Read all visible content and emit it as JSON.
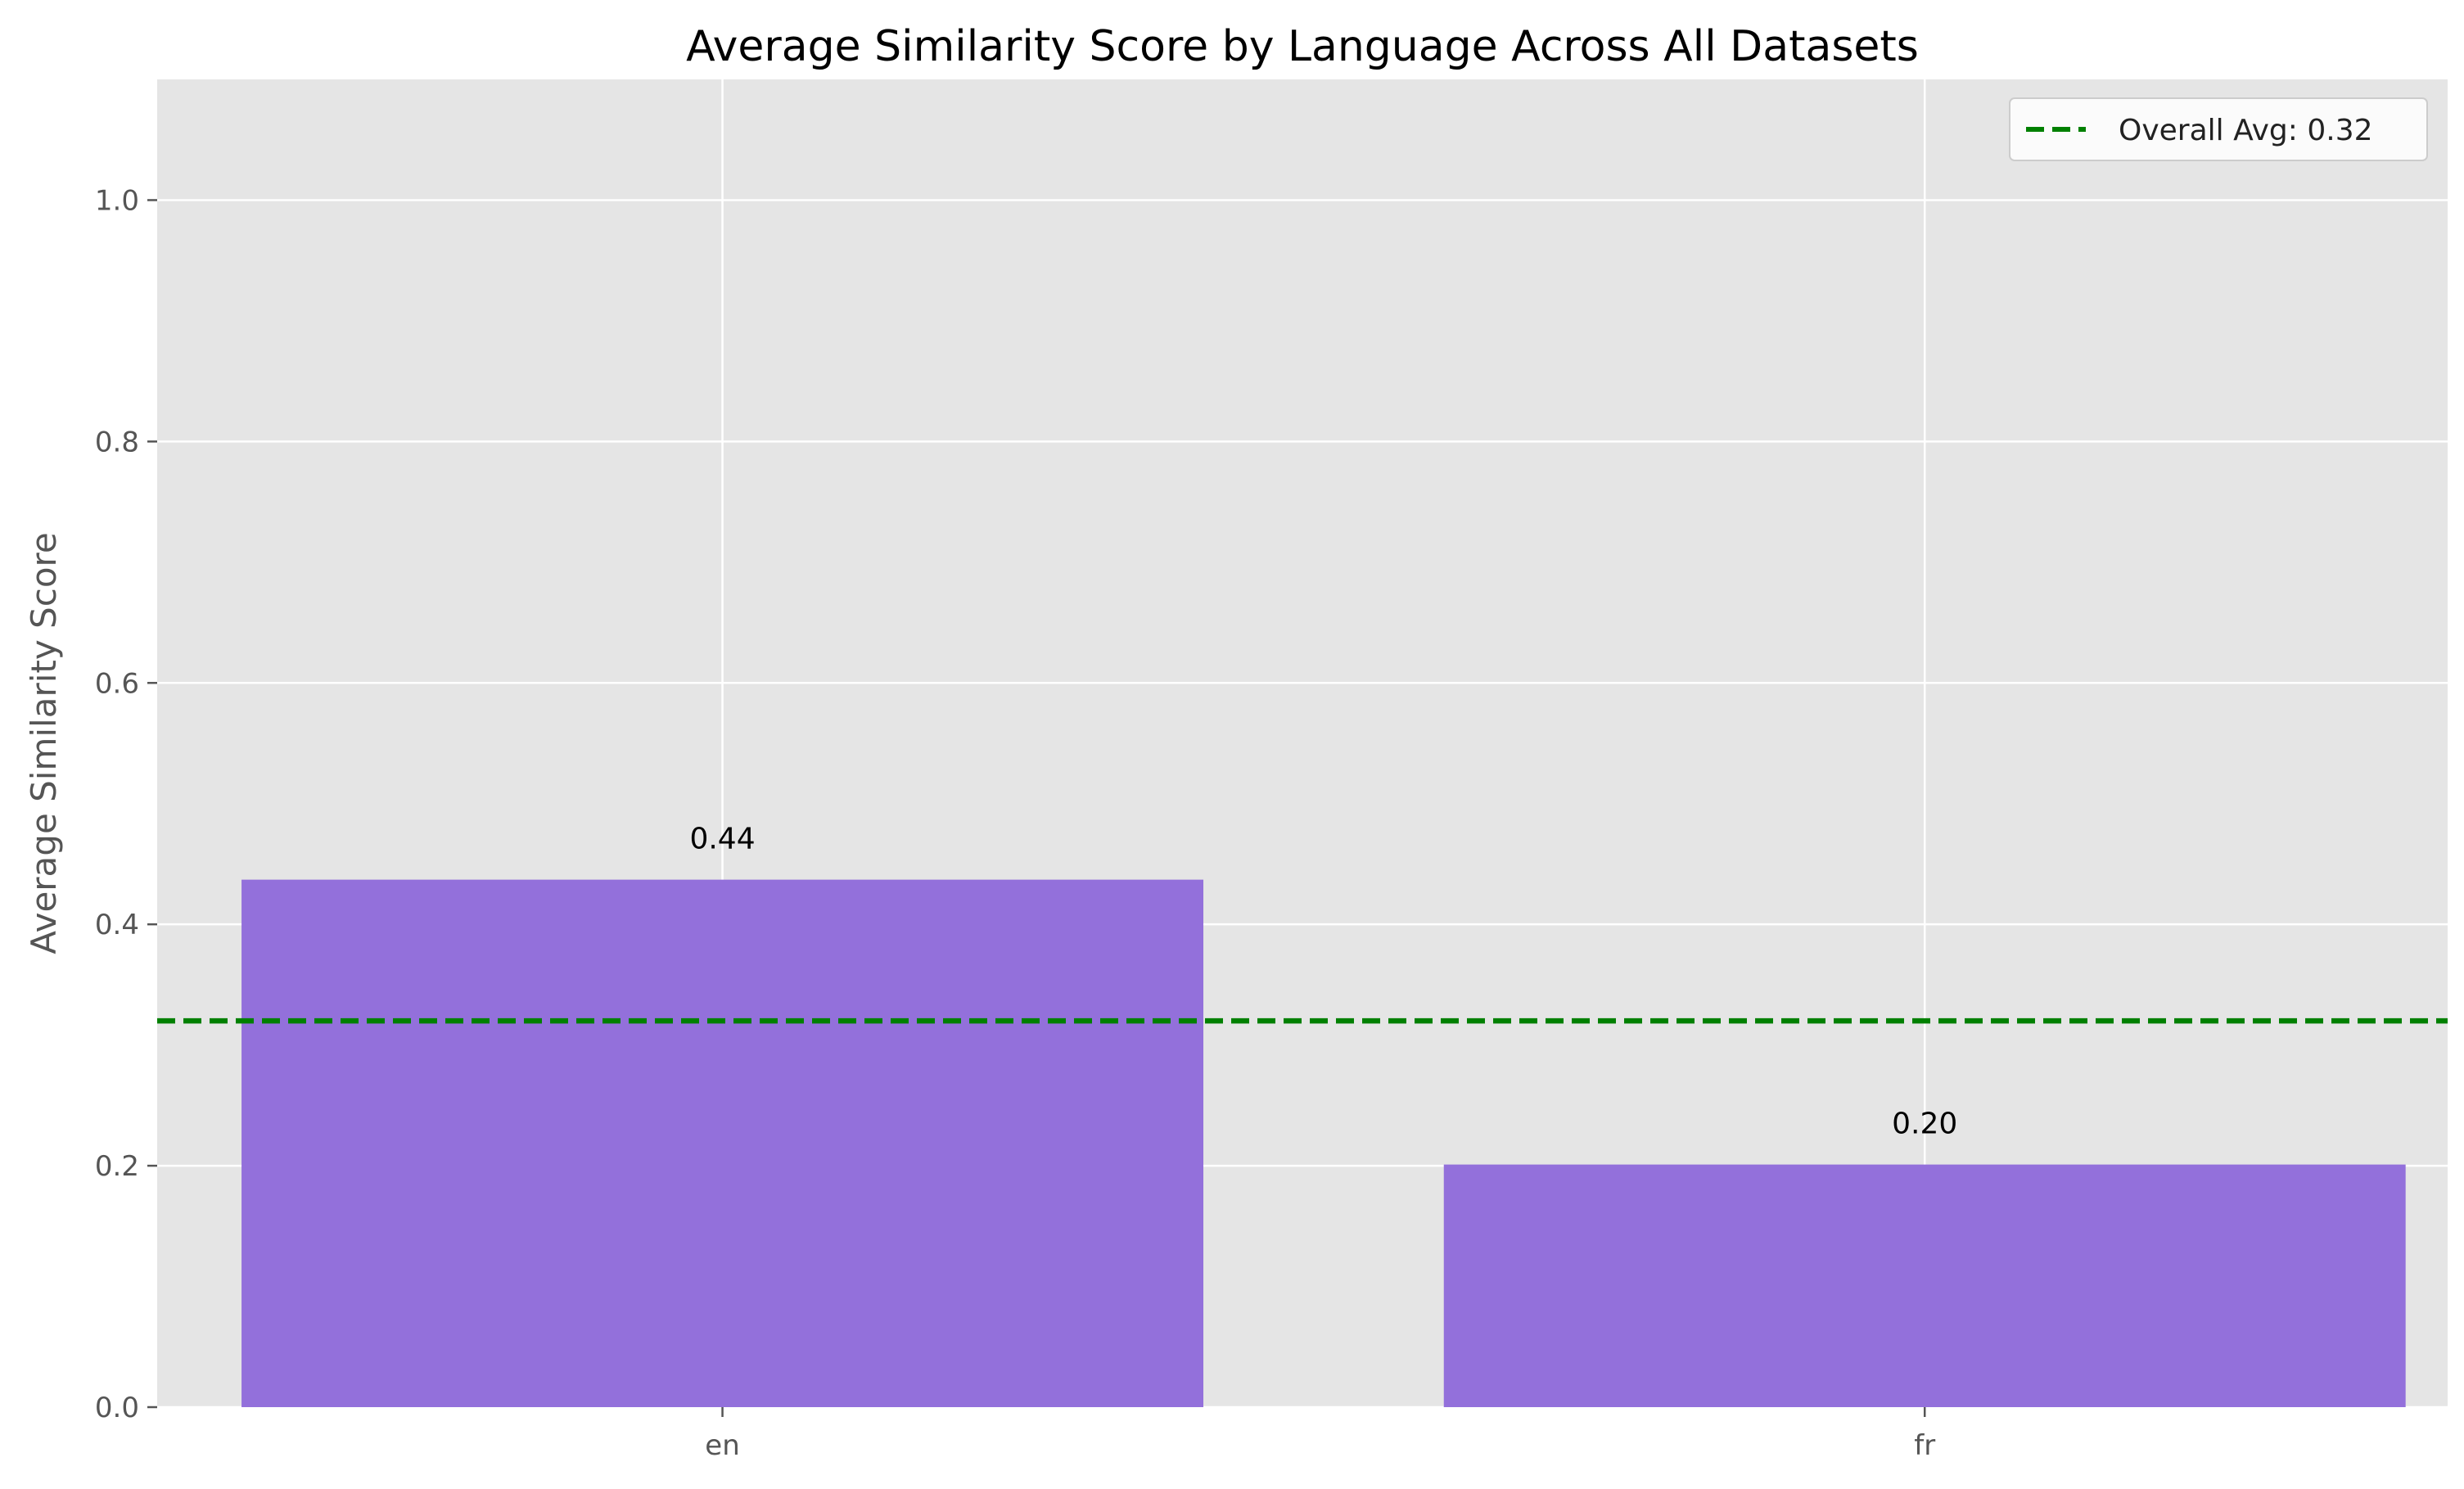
{
  "chart_data": {
    "type": "bar",
    "title": "Average Similarity Score by Language Across All Datasets",
    "xlabel": "",
    "ylabel": "Average Similarity Score",
    "categories": [
      "en",
      "fr"
    ],
    "values": [
      0.437,
      0.201
    ],
    "value_labels": [
      "0.44",
      "0.20"
    ],
    "ylim": [
      0,
      1.1
    ],
    "yticks": [
      0.0,
      0.2,
      0.4,
      0.6,
      0.8,
      1.0
    ],
    "ytick_labels": [
      "0.0",
      "0.2",
      "0.4",
      "0.6",
      "0.8",
      "1.0"
    ],
    "grid": true,
    "legend_position": "top-right",
    "reference_line": {
      "value": 0.32,
      "label": "Overall Avg: 0.32",
      "style": "dashed"
    },
    "colors": {
      "bar": "#9370DB",
      "reference_line": "#008000",
      "plot_background": "#E5E5E5",
      "grid": "#FFFFFF"
    }
  }
}
